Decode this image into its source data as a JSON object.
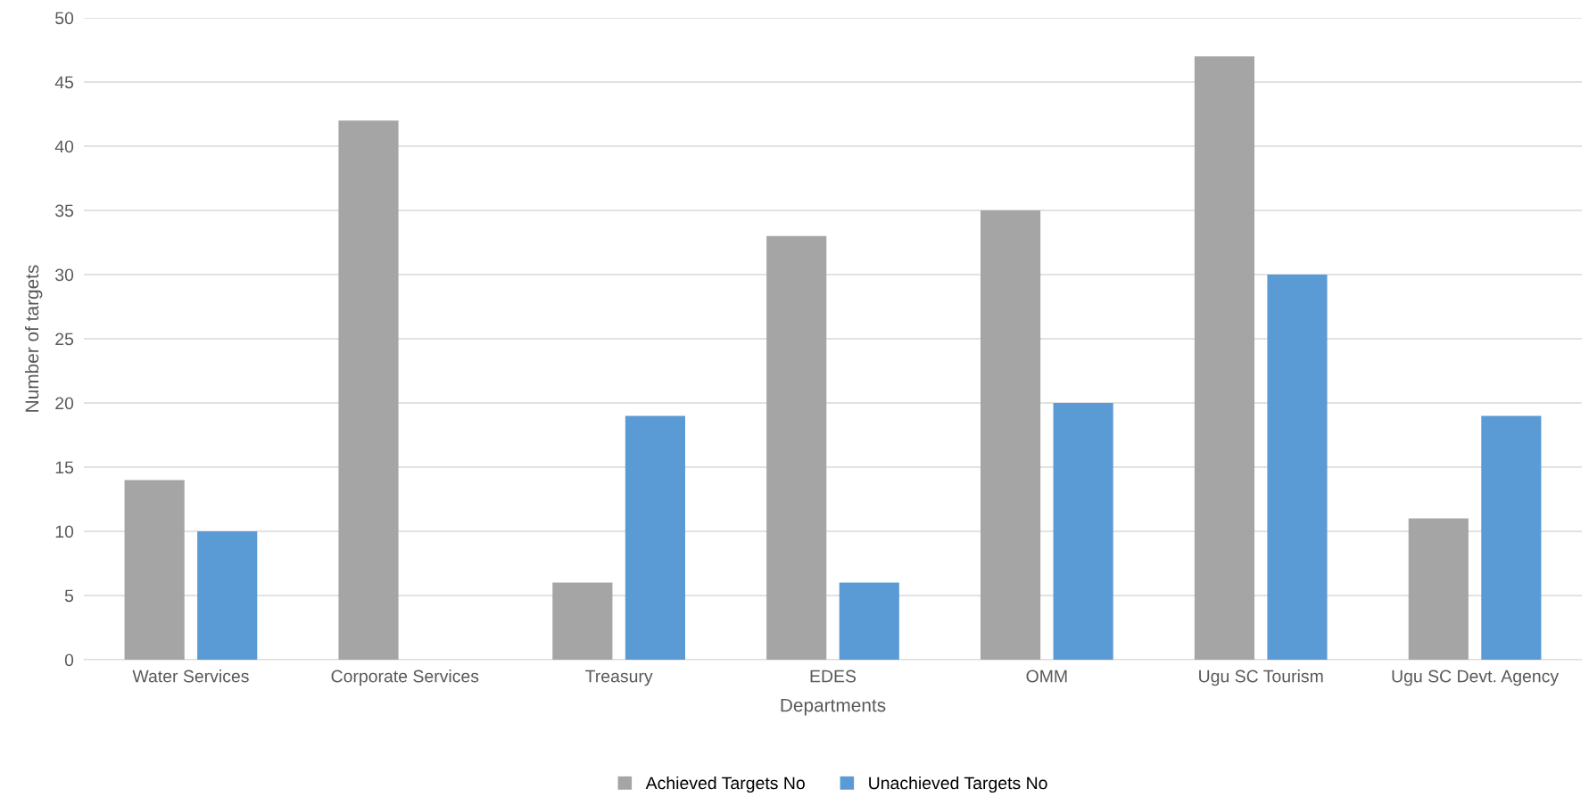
{
  "chart_data": {
    "type": "bar",
    "xlabel": "Departments",
    "ylabel": "Number of targets",
    "categories": [
      "Water Services",
      "Corporate Services",
      "Treasury",
      "EDES",
      "OMM",
      "Ugu SC Tourism",
      "Ugu SC Devt. Agency"
    ],
    "series": [
      {
        "name": "Achieved Targets No",
        "color": "#a5a5a5",
        "values": [
          14,
          42,
          6,
          33,
          35,
          47,
          11
        ]
      },
      {
        "name": "Unachieved Targets No",
        "color": "#5b9bd5",
        "values": [
          10,
          0,
          19,
          6,
          20,
          30,
          19
        ]
      }
    ],
    "ylim": [
      0,
      50
    ],
    "yticks": [
      0,
      5,
      10,
      15,
      20,
      25,
      30,
      35,
      40,
      45,
      50
    ],
    "grid": "y",
    "legend": "bottom"
  }
}
